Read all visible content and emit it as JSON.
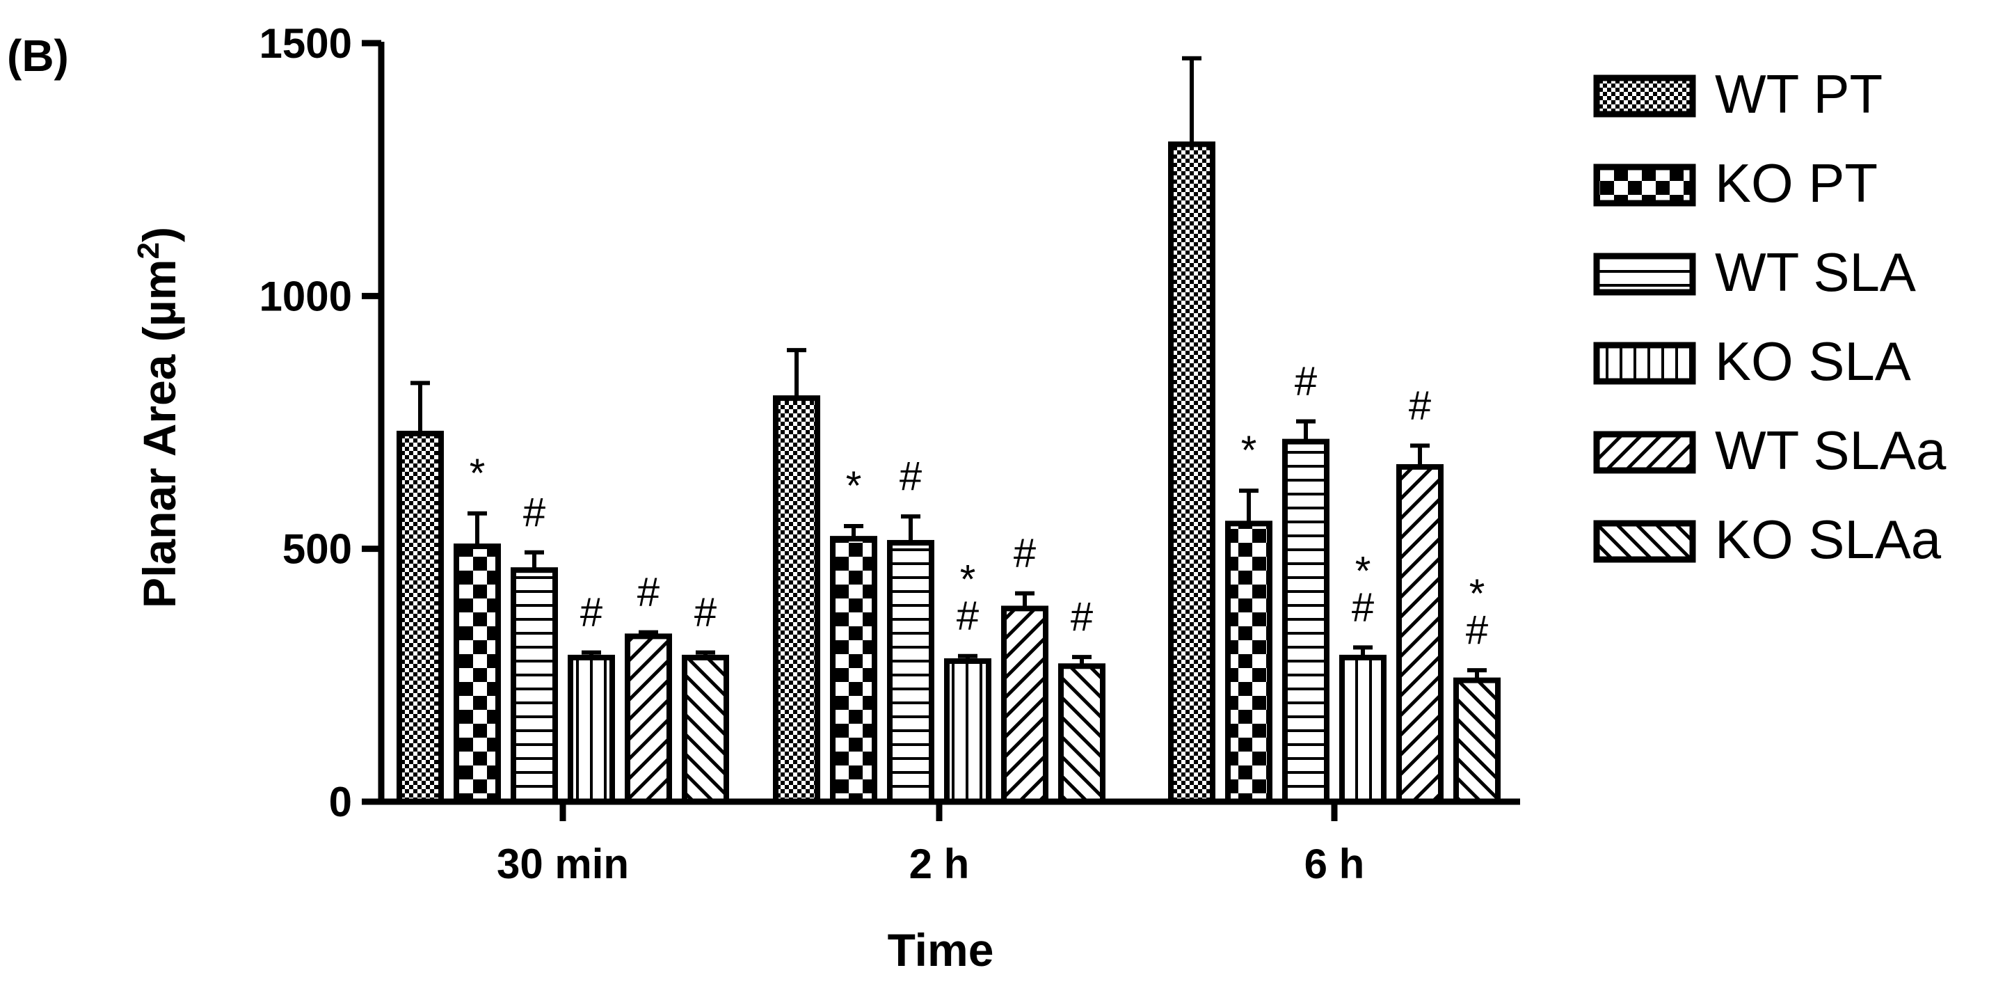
{
  "panel_label": "(B)",
  "chart_data": {
    "type": "bar",
    "title": "",
    "xlabel": "Time",
    "ylabel": "Planar Area (µm",
    "ylabel_superscript": "2",
    "ylabel_close": ")",
    "ylim": [
      0,
      1500
    ],
    "yticks": [
      0,
      500,
      1000,
      1500
    ],
    "ytick_labels": [
      "0",
      "500",
      "1000",
      "1500"
    ],
    "categories": [
      "30 min",
      "2 h",
      "6 h"
    ],
    "legend_position": "right",
    "series": [
      {
        "name": "WT PT",
        "pattern": "dense-checker",
        "values": [
          728,
          798,
          1300
        ],
        "errors": [
          100,
          95,
          170
        ],
        "annotations": [
          "",
          "",
          ""
        ]
      },
      {
        "name": "KO PT",
        "pattern": "checker",
        "values": [
          505,
          520,
          550
        ],
        "errors": [
          65,
          25,
          65
        ],
        "annotations": [
          "*",
          "*",
          "*"
        ]
      },
      {
        "name": "WT SLA",
        "pattern": "horizontal",
        "values": [
          458,
          512,
          712
        ],
        "errors": [
          35,
          52,
          40
        ],
        "annotations": [
          "#",
          "#",
          "#"
        ]
      },
      {
        "name": "KO SLA",
        "pattern": "vertical",
        "values": [
          285,
          278,
          285
        ],
        "errors": [
          10,
          10,
          20
        ],
        "annotations": [
          "#",
          "*\n#",
          "*\n#"
        ]
      },
      {
        "name": "WT SLAa",
        "pattern": "diag-forward",
        "values": [
          327,
          382,
          662
        ],
        "errors": [
          8,
          30,
          42
        ],
        "annotations": [
          "#",
          "#",
          "#"
        ]
      },
      {
        "name": "KO SLAa",
        "pattern": "diag-back",
        "values": [
          285,
          268,
          240
        ],
        "errors": [
          10,
          18,
          20
        ],
        "annotations": [
          "#",
          "#",
          "*\n#"
        ]
      }
    ],
    "colors": {
      "ink": "#000000",
      "background": "#ffffff"
    }
  }
}
